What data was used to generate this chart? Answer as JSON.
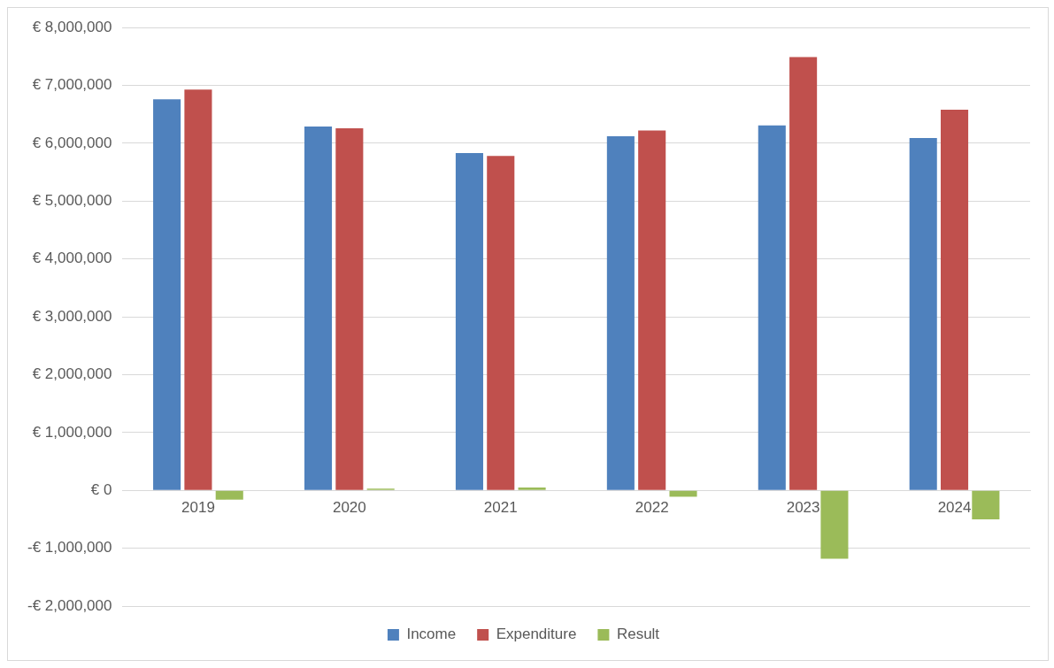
{
  "chart_data": {
    "type": "bar",
    "categories": [
      "2019",
      "2020",
      "2021",
      "2022",
      "2023",
      "2024"
    ],
    "series": [
      {
        "name": "Income",
        "color": "#4f81bd",
        "values": [
          6760000,
          6290000,
          5830000,
          6120000,
          6310000,
          6090000
        ]
      },
      {
        "name": "Expenditure",
        "color": "#c0504d",
        "values": [
          6930000,
          6260000,
          5780000,
          6220000,
          7490000,
          6580000
        ]
      },
      {
        "name": "Result",
        "color": "#9bbb59",
        "values": [
          -160000,
          30000,
          50000,
          -110000,
          -1180000,
          -500000
        ]
      }
    ],
    "ylim": [
      -2000000,
      8000000
    ],
    "yticks": [
      {
        "value": -2000000,
        "label": "-€ 2,000,000"
      },
      {
        "value": -1000000,
        "label": "-€ 1,000,000"
      },
      {
        "value": 0,
        "label": "€ 0"
      },
      {
        "value": 1000000,
        "label": "€ 1,000,000"
      },
      {
        "value": 2000000,
        "label": "€ 2,000,000"
      },
      {
        "value": 3000000,
        "label": "€ 3,000,000"
      },
      {
        "value": 4000000,
        "label": "€ 4,000,000"
      },
      {
        "value": 5000000,
        "label": "€ 5,000,000"
      },
      {
        "value": 6000000,
        "label": "€ 6,000,000"
      },
      {
        "value": 7000000,
        "label": "€ 7,000,000"
      },
      {
        "value": 8000000,
        "label": "€ 8,000,000"
      }
    ],
    "grid": "y",
    "legend": "bottom"
  }
}
